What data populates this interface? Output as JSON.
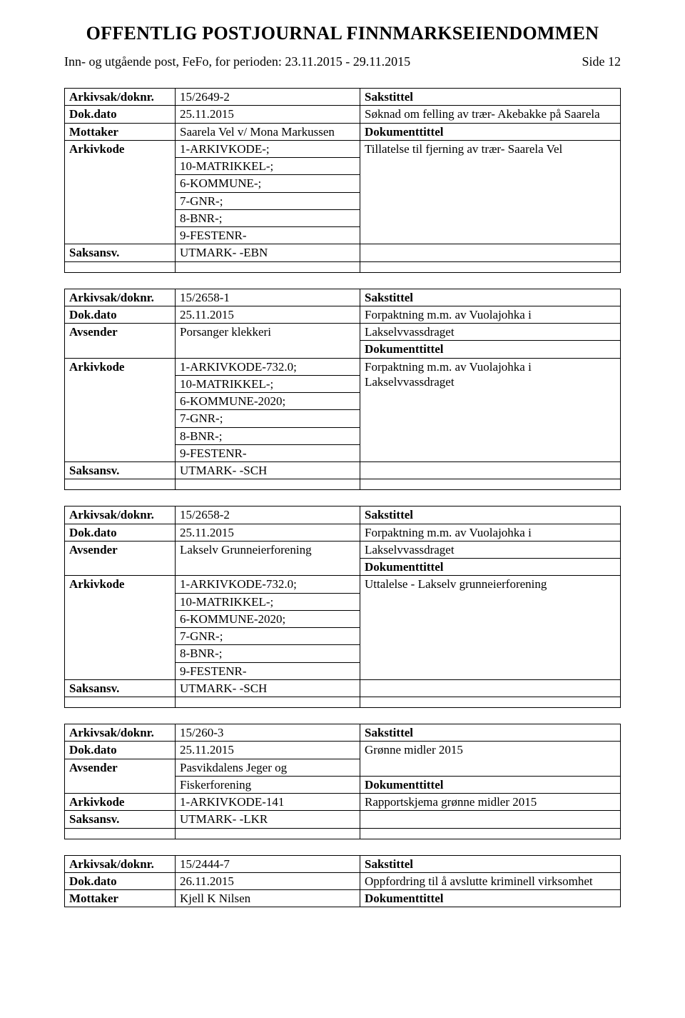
{
  "header": {
    "title": "OFFENTLIG POSTJOURNAL FINNMARKSEIENDOMMEN",
    "subtitle": "Inn- og utgående post, FeFo, for perioden: 23.11.2015 - 29.11.2015",
    "page_label": "Side 12"
  },
  "records": [
    {
      "arkivsak_label": "Arkivsak/doknr.",
      "arkivsak_value": "15/2649-2",
      "sakstittel_label": "Sakstittel",
      "dokdato_label": "Dok.dato",
      "dokdato_value": "25.11.2015",
      "dokdato_right": "Søknad om felling av trær- Akebakke på Saarela",
      "party_label": "Mottaker",
      "party_value": "Saarela Vel v/ Mona Markussen",
      "dokumenttittel_label": "Dokumenttittel",
      "arkivkode_label": "Arkivkode",
      "arkivkode_lines": [
        "1-ARKIVKODE-;",
        "10-MATRIKKEL-;",
        "6-KOMMUNE-;",
        "7-GNR-;",
        "8-BNR-;",
        "9-FESTENR-"
      ],
      "arkivkode_right": "Tillatelse til fjerning av trær- Saarela Vel",
      "saksansv_label": "Saksansv.",
      "saksansv_value": "UTMARK- -EBN"
    },
    {
      "arkivsak_label": "Arkivsak/doknr.",
      "arkivsak_value": "15/2658-1",
      "sakstittel_label": "Sakstittel",
      "dokdato_label": "Dok.dato",
      "dokdato_value": "25.11.2015",
      "dokdato_right": "Forpaktning m.m. av Vuolajohka i",
      "party_label": "Avsender",
      "party_value": "Porsanger klekkeri",
      "party_right": "Lakselvvassdraget",
      "dokumenttittel_label": "Dokumenttittel",
      "arkivkode_label": "Arkivkode",
      "arkivkode_lines": [
        "1-ARKIVKODE-732.0;",
        "10-MATRIKKEL-;",
        "6-KOMMUNE-2020;",
        "7-GNR-;",
        "8-BNR-;",
        "9-FESTENR-"
      ],
      "arkivkode_right": "Forpaktning m.m. av Vuolajohka i Lakselvvassdraget",
      "saksansv_label": "Saksansv.",
      "saksansv_value": "UTMARK- -SCH"
    },
    {
      "arkivsak_label": "Arkivsak/doknr.",
      "arkivsak_value": "15/2658-2",
      "sakstittel_label": "Sakstittel",
      "dokdato_label": "Dok.dato",
      "dokdato_value": "25.11.2015",
      "dokdato_right": "Forpaktning m.m. av Vuolajohka i",
      "party_label": "Avsender",
      "party_value": "Lakselv Grunneierforening",
      "party_right": "Lakselvvassdraget",
      "dokumenttittel_label": "Dokumenttittel",
      "arkivkode_label": "Arkivkode",
      "arkivkode_lines": [
        "1-ARKIVKODE-732.0;",
        "10-MATRIKKEL-;",
        "6-KOMMUNE-2020;",
        "7-GNR-;",
        "8-BNR-;",
        "9-FESTENR-"
      ],
      "arkivkode_right": "Uttalelse - Lakselv grunneierforening",
      "saksansv_label": "Saksansv.",
      "saksansv_value": "UTMARK- -SCH"
    },
    {
      "arkivsak_label": "Arkivsak/doknr.",
      "arkivsak_value": "15/260-3",
      "sakstittel_label": "Sakstittel",
      "dokdato_label": "Dok.dato",
      "dokdato_value": "25.11.2015",
      "dokdato_right": "Grønne midler 2015",
      "party_label": "Avsender",
      "party_value_lines": [
        "Pasvikdalens Jeger og",
        "Fiskerforening"
      ],
      "dokumenttittel_label": "Dokumenttittel",
      "arkivkode_label": "Arkivkode",
      "arkivkode_lines": [
        "1-ARKIVKODE-141"
      ],
      "arkivkode_right": "Rapportskjema grønne midler 2015",
      "saksansv_label": "Saksansv.",
      "saksansv_value": "UTMARK- -LKR"
    },
    {
      "arkivsak_label": "Arkivsak/doknr.",
      "arkivsak_value": "15/2444-7",
      "sakstittel_label": "Sakstittel",
      "dokdato_label": "Dok.dato",
      "dokdato_value": "26.11.2015",
      "dokdato_right": "Oppfordring til å avslutte kriminell virksomhet",
      "party_label": "Mottaker",
      "party_value": "Kjell K Nilsen",
      "dokumenttittel_label": "Dokumenttittel"
    }
  ]
}
